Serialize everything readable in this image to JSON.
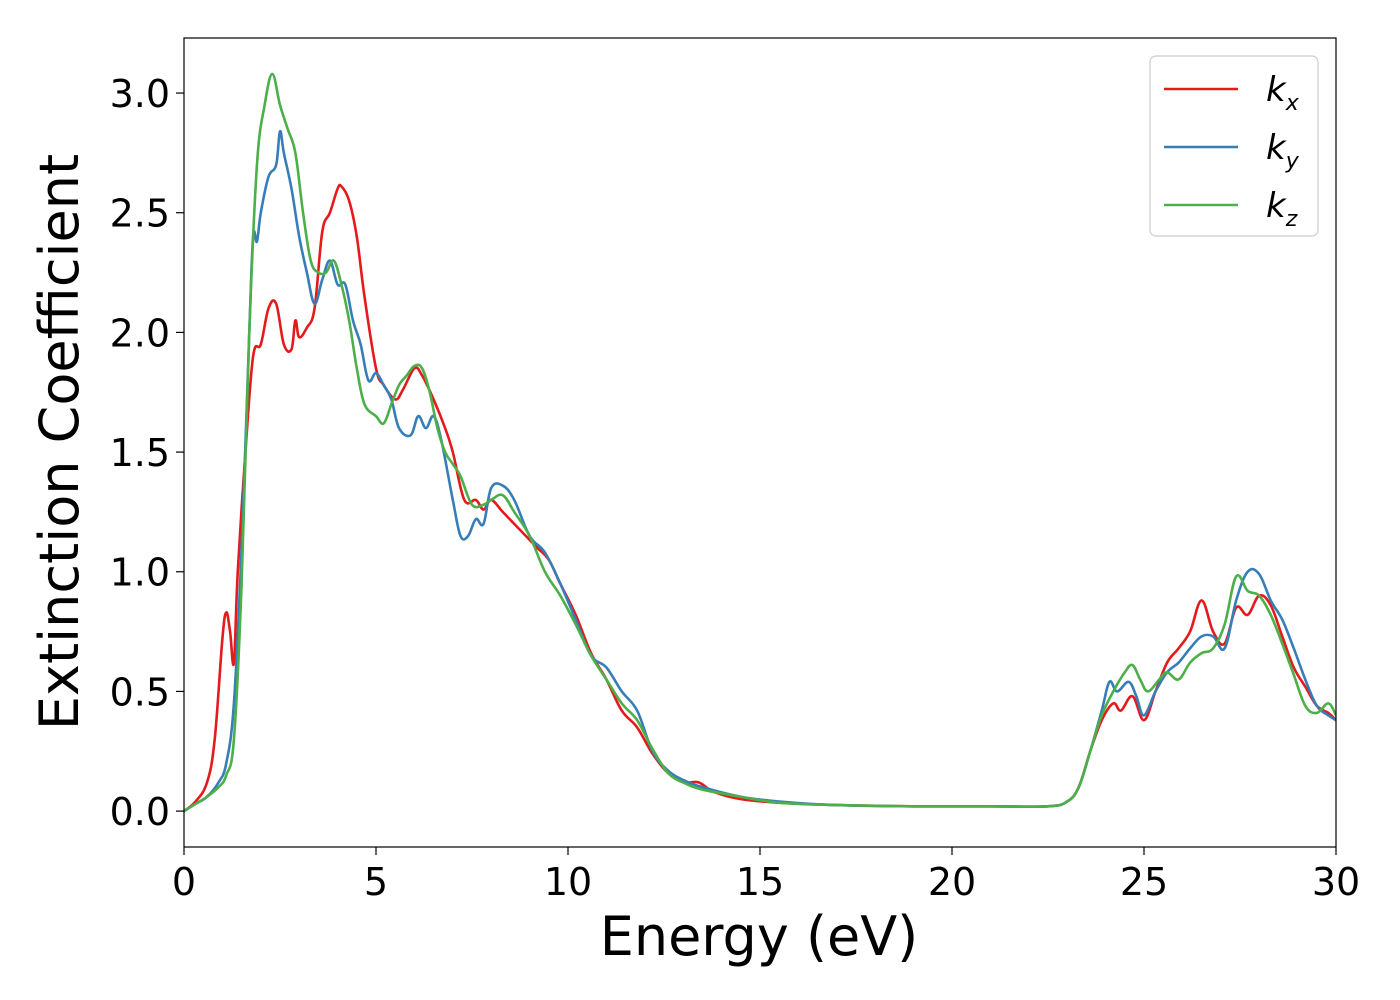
{
  "chart_data": {
    "type": "line",
    "xlabel": "Energy (eV)",
    "ylabel": "Extinction Coefficient",
    "xlim": [
      0,
      30
    ],
    "ylim": [
      -0.15,
      3.23
    ],
    "xticks": [
      0,
      5,
      10,
      15,
      20,
      25,
      30
    ],
    "xtick_labels": [
      "0",
      "5",
      "10",
      "15",
      "20",
      "25",
      "30"
    ],
    "yticks": [
      0.0,
      0.5,
      1.0,
      1.5,
      2.0,
      2.5,
      3.0
    ],
    "ytick_labels": [
      "0.0",
      "0.5",
      "1.0",
      "1.5",
      "2.0",
      "2.5",
      "3.0"
    ],
    "grid": false,
    "legend_position": "top-right",
    "series": [
      {
        "name": "k",
        "subscript": "x",
        "color": "#e41a1c",
        "x": [
          0,
          0.3,
          0.6,
          0.8,
          1.0,
          1.1,
          1.2,
          1.3,
          1.4,
          1.6,
          1.8,
          2.0,
          2.2,
          2.4,
          2.6,
          2.8,
          2.9,
          3.0,
          3.2,
          3.4,
          3.6,
          3.8,
          4.0,
          4.1,
          4.3,
          4.5,
          4.7,
          5.0,
          5.2,
          5.5,
          5.7,
          6.0,
          6.2,
          6.5,
          6.8,
          7.0,
          7.3,
          7.6,
          7.8,
          8.0,
          8.3,
          8.6,
          8.9,
          9.2,
          9.5,
          9.8,
          10.2,
          10.6,
          11.0,
          11.4,
          11.8,
          12.2,
          12.6,
          13.0,
          13.4,
          13.8,
          14.5,
          15.5,
          17.0,
          19.0,
          21.0,
          22.5,
          23.0,
          23.3,
          23.6,
          23.9,
          24.2,
          24.4,
          24.7,
          25.0,
          25.3,
          25.6,
          25.9,
          26.2,
          26.5,
          26.8,
          27.1,
          27.4,
          27.7,
          28.0,
          28.3,
          28.6,
          28.9,
          29.2,
          29.5,
          29.8,
          30.0
        ],
        "y": [
          0.0,
          0.04,
          0.12,
          0.3,
          0.72,
          0.83,
          0.75,
          0.62,
          1.0,
          1.5,
          1.9,
          1.95,
          2.1,
          2.12,
          1.95,
          1.93,
          2.05,
          1.98,
          2.02,
          2.1,
          2.42,
          2.5,
          2.6,
          2.61,
          2.55,
          2.4,
          2.15,
          1.85,
          1.78,
          1.72,
          1.76,
          1.85,
          1.82,
          1.72,
          1.6,
          1.5,
          1.3,
          1.3,
          1.26,
          1.3,
          1.25,
          1.2,
          1.15,
          1.1,
          1.05,
          0.95,
          0.82,
          0.66,
          0.55,
          0.42,
          0.35,
          0.24,
          0.16,
          0.12,
          0.12,
          0.08,
          0.05,
          0.035,
          0.025,
          0.02,
          0.02,
          0.02,
          0.04,
          0.1,
          0.25,
          0.38,
          0.45,
          0.42,
          0.48,
          0.38,
          0.5,
          0.62,
          0.68,
          0.75,
          0.88,
          0.75,
          0.7,
          0.85,
          0.82,
          0.9,
          0.86,
          0.73,
          0.6,
          0.52,
          0.44,
          0.41,
          0.38
        ]
      },
      {
        "name": "k",
        "subscript": "y",
        "color": "#377eb8",
        "x": [
          0,
          0.3,
          0.6,
          0.9,
          1.1,
          1.3,
          1.5,
          1.7,
          1.8,
          1.9,
          2.0,
          2.2,
          2.4,
          2.5,
          2.6,
          2.8,
          3.0,
          3.2,
          3.4,
          3.6,
          3.8,
          4.0,
          4.2,
          4.4,
          4.6,
          4.8,
          5.0,
          5.2,
          5.4,
          5.6,
          5.9,
          6.1,
          6.3,
          6.5,
          6.7,
          7.0,
          7.2,
          7.4,
          7.6,
          7.8,
          8.0,
          8.3,
          8.6,
          9.0,
          9.4,
          9.8,
          10.2,
          10.6,
          11.0,
          11.4,
          11.8,
          12.2,
          12.6,
          13.0,
          13.5,
          14.5,
          15.5,
          17.0,
          19.0,
          21.0,
          22.5,
          23.0,
          23.3,
          23.6,
          23.9,
          24.1,
          24.3,
          24.6,
          24.8,
          25.0,
          25.3,
          25.6,
          25.9,
          26.2,
          26.5,
          26.8,
          27.1,
          27.4,
          27.7,
          28.0,
          28.3,
          28.6,
          28.9,
          29.2,
          29.5,
          29.8,
          30.0
        ],
        "y": [
          0.0,
          0.03,
          0.06,
          0.12,
          0.2,
          0.45,
          1.1,
          2.0,
          2.4,
          2.38,
          2.5,
          2.65,
          2.7,
          2.84,
          2.75,
          2.6,
          2.4,
          2.25,
          2.12,
          2.22,
          2.3,
          2.2,
          2.2,
          2.05,
          1.95,
          1.8,
          1.83,
          1.78,
          1.72,
          1.6,
          1.57,
          1.65,
          1.6,
          1.65,
          1.55,
          1.3,
          1.15,
          1.15,
          1.22,
          1.2,
          1.35,
          1.36,
          1.3,
          1.15,
          1.08,
          0.95,
          0.8,
          0.65,
          0.6,
          0.5,
          0.42,
          0.25,
          0.17,
          0.13,
          0.1,
          0.06,
          0.04,
          0.025,
          0.02,
          0.02,
          0.02,
          0.04,
          0.1,
          0.25,
          0.42,
          0.54,
          0.5,
          0.54,
          0.48,
          0.4,
          0.5,
          0.58,
          0.62,
          0.68,
          0.73,
          0.73,
          0.68,
          0.88,
          1.0,
          0.99,
          0.88,
          0.8,
          0.68,
          0.55,
          0.44,
          0.4,
          0.38
        ]
      },
      {
        "name": "k",
        "subscript": "z",
        "color": "#4daf4a",
        "x": [
          0,
          0.3,
          0.6,
          0.9,
          1.1,
          1.3,
          1.5,
          1.7,
          1.9,
          2.1,
          2.3,
          2.5,
          2.7,
          2.9,
          3.1,
          3.3,
          3.5,
          3.7,
          3.9,
          4.1,
          4.3,
          4.5,
          4.7,
          5.0,
          5.2,
          5.4,
          5.6,
          5.8,
          6.0,
          6.2,
          6.4,
          6.6,
          6.8,
          7.0,
          7.2,
          7.5,
          7.8,
          8.0,
          8.3,
          8.6,
          9.0,
          9.4,
          9.8,
          10.2,
          10.6,
          11.0,
          11.4,
          11.8,
          12.2,
          12.6,
          13.0,
          13.5,
          14.5,
          15.5,
          17.0,
          19.0,
          21.0,
          22.5,
          23.0,
          23.3,
          23.6,
          23.9,
          24.2,
          24.5,
          24.7,
          24.9,
          25.1,
          25.4,
          25.6,
          25.9,
          26.2,
          26.5,
          26.8,
          27.1,
          27.4,
          27.7,
          28.0,
          28.3,
          28.6,
          28.9,
          29.2,
          29.5,
          29.8,
          30.0
        ],
        "y": [
          0.0,
          0.03,
          0.06,
          0.1,
          0.15,
          0.3,
          0.95,
          2.0,
          2.7,
          2.95,
          3.08,
          2.95,
          2.85,
          2.75,
          2.5,
          2.3,
          2.25,
          2.25,
          2.3,
          2.2,
          2.05,
          1.85,
          1.7,
          1.65,
          1.62,
          1.7,
          1.78,
          1.82,
          1.86,
          1.85,
          1.75,
          1.6,
          1.5,
          1.45,
          1.4,
          1.28,
          1.28,
          1.3,
          1.32,
          1.25,
          1.15,
          1.0,
          0.9,
          0.78,
          0.65,
          0.55,
          0.45,
          0.38,
          0.26,
          0.16,
          0.12,
          0.09,
          0.06,
          0.035,
          0.025,
          0.02,
          0.02,
          0.02,
          0.04,
          0.1,
          0.25,
          0.4,
          0.5,
          0.58,
          0.61,
          0.55,
          0.5,
          0.55,
          0.58,
          0.55,
          0.62,
          0.66,
          0.68,
          0.78,
          0.98,
          0.92,
          0.9,
          0.82,
          0.7,
          0.57,
          0.44,
          0.41,
          0.45,
          0.4
        ]
      }
    ]
  }
}
